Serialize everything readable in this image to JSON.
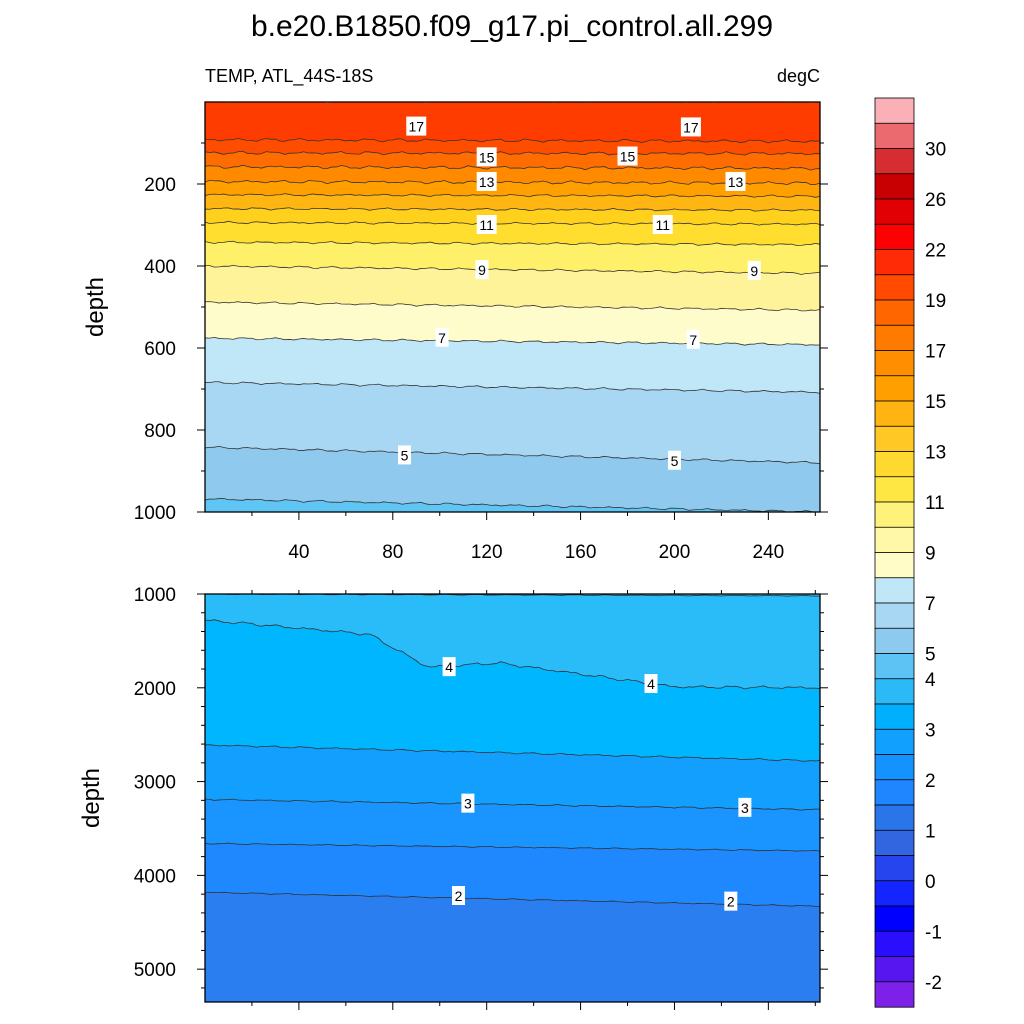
{
  "chart_data": {
    "type": "contour",
    "title": "b.e20.B1850.f09_g17.pi_control.all.299",
    "left_label": "TEMP, ATL_44S-18S",
    "units": "degC",
    "top_panel": {
      "ylabel": "depth",
      "y_range": [
        0,
        1000
      ],
      "y_ticks": [
        "200",
        "400",
        "600",
        "800",
        "1000"
      ],
      "x_range": [
        0,
        262
      ],
      "x_ticks": [
        "40",
        "80",
        "120",
        "160",
        "200",
        "240"
      ],
      "contour_levels": [
        5,
        6,
        7,
        8,
        9,
        10,
        11,
        12,
        13,
        14,
        15,
        16,
        17,
        18
      ],
      "contour_depths_start": [
        968,
        842,
        684,
        576,
        488,
        400,
        342,
        294,
        260,
        226,
        194,
        158,
        124,
        92
      ],
      "contour_depths_end": [
        1000,
        880,
        708,
        592,
        508,
        418,
        348,
        298,
        264,
        230,
        198,
        162,
        126,
        96
      ],
      "labels": [
        {
          "text": "17",
          "x": 90,
          "depth": 60
        },
        {
          "text": "17",
          "x": 207,
          "depth": 62
        },
        {
          "text": "15",
          "x": 120,
          "depth": 135
        },
        {
          "text": "15",
          "x": 180,
          "depth": 133
        },
        {
          "text": "13",
          "x": 120,
          "depth": 195
        },
        {
          "text": "13",
          "x": 226,
          "depth": 195
        },
        {
          "text": "11",
          "x": 120,
          "depth": 300
        },
        {
          "text": "11",
          "x": 195,
          "depth": 300
        },
        {
          "text": "9",
          "x": 118,
          "depth": 410
        },
        {
          "text": "9",
          "x": 234,
          "depth": 412
        },
        {
          "text": "7",
          "x": 101,
          "depth": 575
        },
        {
          "text": "7",
          "x": 208,
          "depth": 580
        },
        {
          "text": "5",
          "x": 85,
          "depth": 862
        },
        {
          "text": "5",
          "x": 200,
          "depth": 875
        }
      ]
    },
    "bottom_panel": {
      "ylabel": "depth",
      "y_range": [
        1000,
        5350
      ],
      "y_ticks": [
        "1000",
        "2000",
        "3000",
        "4000",
        "5000"
      ],
      "x_range": [
        0,
        262
      ],
      "contour_levels": [
        2,
        2.5,
        3,
        3.5,
        4,
        4.5
      ],
      "labels": [
        {
          "text": "4",
          "x": 104,
          "depth": 1780
        },
        {
          "text": "4",
          "x": 190,
          "depth": 1960
        },
        {
          "text": "3",
          "x": 112,
          "depth": 3235
        },
        {
          "text": "3",
          "x": 230,
          "depth": 3280
        },
        {
          "text": "2",
          "x": 108,
          "depth": 4220
        },
        {
          "text": "2",
          "x": 224,
          "depth": 4280
        }
      ]
    },
    "colorbar": {
      "labels": [
        "30",
        "26",
        "22",
        "19",
        "17",
        "15",
        "13",
        "11",
        "9",
        "7",
        "5",
        "4",
        "3",
        "2",
        "1",
        "0",
        "-1",
        "-2"
      ],
      "colors": [
        "#fbb0b8",
        "#ea6a6f",
        "#d62d33",
        "#c90001",
        "#e10003",
        "#fc0002",
        "#ff2a06",
        "#ff4a00",
        "#ff6600",
        "#ff7b00",
        "#ff8f00",
        "#ffa000",
        "#ffb411",
        "#ffc824",
        "#ffd830",
        "#ffe743",
        "#fff27a",
        "#fff8a8",
        "#fffcc8",
        "#bfe7f7",
        "#a7d7f3",
        "#8ccbef",
        "#5dc2f4",
        "#2cbaf7",
        "#00b0ff",
        "#12a0ff",
        "#1493ff",
        "#1f86ff",
        "#2b75ea",
        "#3265e0",
        "#2745ee",
        "#1525ff",
        "#0000ff",
        "#2a0fff",
        "#5715f0",
        "#7d21e8"
      ]
    }
  }
}
